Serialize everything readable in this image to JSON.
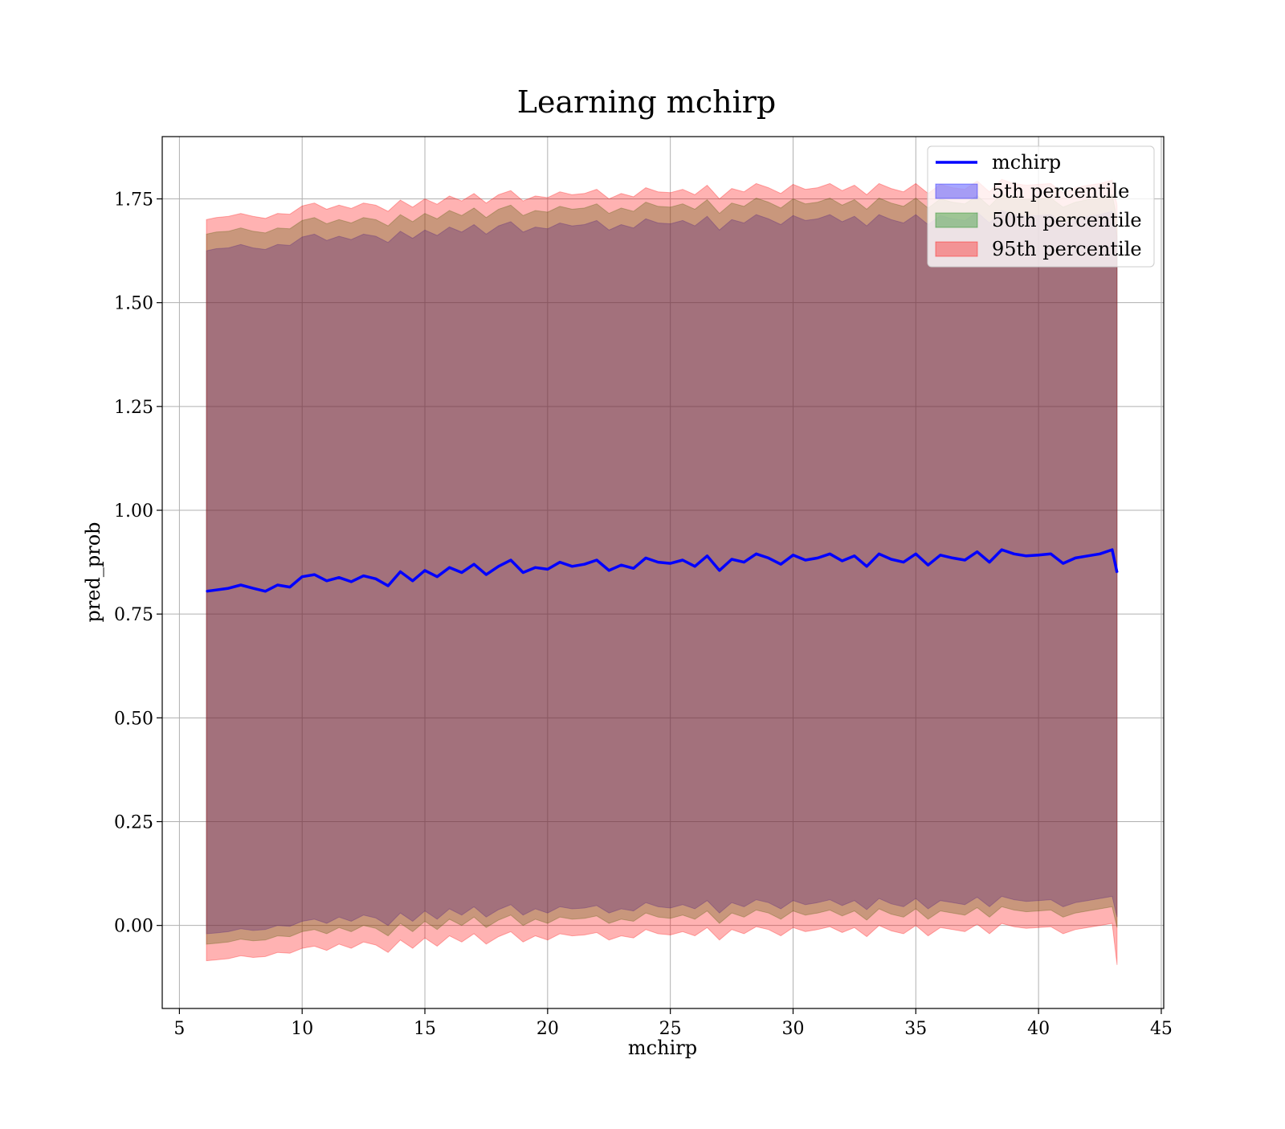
{
  "chart_data": {
    "type": "line",
    "title": "Learning mchirp",
    "xlabel": "mchirp",
    "ylabel": "pred_prob",
    "xlim": [
      4.3,
      45.1
    ],
    "ylim": [
      -0.2,
      1.9
    ],
    "xticks": [
      5,
      10,
      15,
      20,
      25,
      30,
      35,
      40,
      45
    ],
    "yticks": [
      0.0,
      0.25,
      0.5,
      0.75,
      1.0,
      1.25,
      1.5,
      1.75
    ],
    "xtick_labels": [
      "5",
      "10",
      "15",
      "20",
      "25",
      "30",
      "35",
      "40",
      "45"
    ],
    "ytick_labels": [
      "0.00",
      "0.25",
      "0.50",
      "0.75",
      "1.00",
      "1.25",
      "1.50",
      "1.75"
    ],
    "grid": true,
    "legend_position": "top-right",
    "legend": [
      {
        "label": "mchirp",
        "kind": "line",
        "color": "#0000ff"
      },
      {
        "label": "5th percentile",
        "kind": "band",
        "color": "#0000ff"
      },
      {
        "label": "50th percentile",
        "kind": "band",
        "color": "#008000"
      },
      {
        "label": "95th percentile",
        "kind": "band",
        "color": "#ff0000"
      }
    ],
    "x": [
      6.1,
      6.5,
      7.0,
      7.5,
      8.0,
      8.5,
      9.0,
      9.5,
      10.0,
      10.5,
      11.0,
      11.5,
      12.0,
      12.5,
      13.0,
      13.5,
      14.0,
      14.5,
      15.0,
      15.5,
      16.0,
      16.5,
      17.0,
      17.5,
      18.0,
      18.5,
      19.0,
      19.5,
      20.0,
      20.5,
      21.0,
      21.5,
      22.0,
      22.5,
      23.0,
      23.5,
      24.0,
      24.5,
      25.0,
      25.5,
      26.0,
      26.5,
      27.0,
      27.5,
      28.0,
      28.5,
      29.0,
      29.5,
      30.0,
      30.5,
      31.0,
      31.5,
      32.0,
      32.5,
      33.0,
      33.5,
      34.0,
      34.5,
      35.0,
      35.5,
      36.0,
      36.5,
      37.0,
      37.5,
      38.0,
      38.5,
      39.0,
      39.5,
      40.0,
      40.5,
      41.0,
      41.5,
      42.0,
      42.5,
      43.0,
      43.2
    ],
    "series": [
      {
        "name": "mchirp",
        "role": "line",
        "color": "#0000ff",
        "values": [
          0.805,
          0.808,
          0.812,
          0.82,
          0.812,
          0.805,
          0.82,
          0.815,
          0.84,
          0.845,
          0.83,
          0.838,
          0.828,
          0.842,
          0.835,
          0.818,
          0.852,
          0.83,
          0.855,
          0.84,
          0.862,
          0.85,
          0.87,
          0.845,
          0.865,
          0.88,
          0.85,
          0.862,
          0.858,
          0.875,
          0.865,
          0.87,
          0.88,
          0.855,
          0.868,
          0.86,
          0.885,
          0.875,
          0.872,
          0.88,
          0.865,
          0.89,
          0.855,
          0.882,
          0.875,
          0.895,
          0.885,
          0.87,
          0.892,
          0.88,
          0.885,
          0.895,
          0.878,
          0.89,
          0.865,
          0.895,
          0.882,
          0.875,
          0.895,
          0.868,
          0.892,
          0.885,
          0.88,
          0.9,
          0.875,
          0.905,
          0.895,
          0.89,
          0.892,
          0.895,
          0.872,
          0.885,
          0.89,
          0.895,
          0.905,
          0.85
        ]
      },
      {
        "name": "5th percentile",
        "role": "band",
        "color": "#0000ff",
        "lower": [
          -0.02,
          -0.018,
          -0.015,
          -0.008,
          -0.012,
          -0.01,
          0.0,
          -0.002,
          0.01,
          0.015,
          0.005,
          0.02,
          0.01,
          0.025,
          0.018,
          0.0,
          0.03,
          0.01,
          0.035,
          0.015,
          0.04,
          0.025,
          0.045,
          0.02,
          0.038,
          0.05,
          0.025,
          0.04,
          0.03,
          0.045,
          0.04,
          0.042,
          0.048,
          0.03,
          0.04,
          0.035,
          0.055,
          0.045,
          0.042,
          0.05,
          0.04,
          0.06,
          0.03,
          0.055,
          0.045,
          0.062,
          0.055,
          0.04,
          0.06,
          0.05,
          0.055,
          0.062,
          0.048,
          0.06,
          0.038,
          0.065,
          0.052,
          0.045,
          0.065,
          0.04,
          0.06,
          0.055,
          0.05,
          0.068,
          0.045,
          0.07,
          0.062,
          0.058,
          0.06,
          0.062,
          0.045,
          0.055,
          0.06,
          0.065,
          0.07,
          0.02
        ],
        "upper": [
          1.625,
          1.63,
          1.632,
          1.64,
          1.632,
          1.628,
          1.64,
          1.638,
          1.658,
          1.665,
          1.65,
          1.66,
          1.652,
          1.665,
          1.66,
          1.645,
          1.672,
          1.655,
          1.675,
          1.662,
          1.682,
          1.67,
          1.688,
          1.665,
          1.685,
          1.695,
          1.67,
          1.682,
          1.678,
          1.692,
          1.685,
          1.688,
          1.698,
          1.675,
          1.688,
          1.68,
          1.702,
          1.692,
          1.69,
          1.698,
          1.685,
          1.708,
          1.675,
          1.7,
          1.692,
          1.712,
          1.702,
          1.688,
          1.71,
          1.698,
          1.702,
          1.712,
          1.695,
          1.708,
          1.685,
          1.712,
          1.7,
          1.692,
          1.712,
          1.688,
          1.71,
          1.702,
          1.698,
          1.718,
          1.692,
          1.722,
          1.712,
          1.708,
          1.71,
          1.712,
          1.69,
          1.702,
          1.708,
          1.712,
          1.72,
          1.66
        ]
      },
      {
        "name": "50th percentile",
        "role": "band",
        "color": "#008000",
        "lower": [
          -0.045,
          -0.043,
          -0.04,
          -0.033,
          -0.037,
          -0.035,
          -0.025,
          -0.027,
          -0.015,
          -0.01,
          -0.02,
          -0.005,
          -0.015,
          0.0,
          -0.007,
          -0.025,
          0.005,
          -0.015,
          0.01,
          -0.01,
          0.015,
          0.0,
          0.02,
          -0.005,
          0.013,
          0.025,
          0.0,
          0.015,
          0.005,
          0.02,
          0.015,
          0.017,
          0.023,
          0.005,
          0.015,
          0.01,
          0.03,
          0.02,
          0.017,
          0.025,
          0.015,
          0.035,
          0.005,
          0.03,
          0.02,
          0.037,
          0.03,
          0.015,
          0.035,
          0.025,
          0.03,
          0.037,
          0.023,
          0.035,
          0.013,
          0.04,
          0.027,
          0.02,
          0.04,
          0.015,
          0.035,
          0.03,
          0.025,
          0.043,
          0.02,
          0.045,
          0.037,
          0.033,
          0.035,
          0.037,
          0.02,
          0.03,
          0.035,
          0.04,
          0.045,
          -0.005
        ],
        "upper": [
          1.665,
          1.67,
          1.672,
          1.68,
          1.672,
          1.668,
          1.68,
          1.678,
          1.698,
          1.705,
          1.69,
          1.7,
          1.692,
          1.705,
          1.7,
          1.685,
          1.712,
          1.695,
          1.715,
          1.702,
          1.722,
          1.71,
          1.728,
          1.705,
          1.725,
          1.735,
          1.71,
          1.722,
          1.718,
          1.732,
          1.725,
          1.728,
          1.738,
          1.715,
          1.728,
          1.72,
          1.742,
          1.732,
          1.73,
          1.738,
          1.725,
          1.748,
          1.715,
          1.74,
          1.732,
          1.752,
          1.742,
          1.728,
          1.75,
          1.738,
          1.742,
          1.752,
          1.735,
          1.748,
          1.725,
          1.752,
          1.74,
          1.732,
          1.752,
          1.728,
          1.75,
          1.742,
          1.738,
          1.758,
          1.732,
          1.762,
          1.752,
          1.748,
          1.75,
          1.752,
          1.73,
          1.742,
          1.748,
          1.752,
          1.76,
          1.7
        ]
      },
      {
        "name": "95th percentile",
        "role": "band",
        "color": "#ff0000",
        "lower": [
          -0.085,
          -0.083,
          -0.08,
          -0.073,
          -0.077,
          -0.075,
          -0.065,
          -0.067,
          -0.055,
          -0.05,
          -0.06,
          -0.045,
          -0.055,
          -0.04,
          -0.047,
          -0.065,
          -0.035,
          -0.055,
          -0.03,
          -0.05,
          -0.025,
          -0.04,
          -0.02,
          -0.045,
          -0.027,
          -0.015,
          -0.04,
          -0.025,
          -0.035,
          -0.02,
          -0.025,
          -0.023,
          -0.017,
          -0.035,
          -0.025,
          -0.03,
          -0.01,
          -0.02,
          -0.023,
          -0.015,
          -0.025,
          -0.005,
          -0.035,
          -0.01,
          -0.02,
          -0.003,
          -0.01,
          -0.025,
          -0.005,
          -0.015,
          -0.01,
          -0.003,
          -0.017,
          -0.005,
          -0.027,
          0.0,
          -0.013,
          -0.02,
          0.0,
          -0.025,
          -0.005,
          -0.01,
          -0.015,
          0.003,
          -0.02,
          0.005,
          -0.003,
          -0.007,
          -0.005,
          -0.003,
          -0.02,
          -0.01,
          -0.005,
          0.0,
          0.005,
          -0.095
        ],
        "upper": [
          1.7,
          1.705,
          1.708,
          1.715,
          1.708,
          1.703,
          1.715,
          1.713,
          1.733,
          1.74,
          1.725,
          1.735,
          1.727,
          1.74,
          1.735,
          1.72,
          1.747,
          1.73,
          1.75,
          1.737,
          1.757,
          1.745,
          1.763,
          1.74,
          1.76,
          1.77,
          1.745,
          1.757,
          1.753,
          1.767,
          1.76,
          1.763,
          1.773,
          1.75,
          1.763,
          1.755,
          1.777,
          1.767,
          1.765,
          1.773,
          1.76,
          1.783,
          1.75,
          1.775,
          1.767,
          1.787,
          1.777,
          1.763,
          1.785,
          1.773,
          1.777,
          1.787,
          1.77,
          1.783,
          1.76,
          1.787,
          1.775,
          1.767,
          1.787,
          1.763,
          1.785,
          1.777,
          1.773,
          1.793,
          1.767,
          1.797,
          1.787,
          1.783,
          1.785,
          1.787,
          1.765,
          1.777,
          1.783,
          1.787,
          1.795,
          1.735
        ]
      }
    ]
  }
}
